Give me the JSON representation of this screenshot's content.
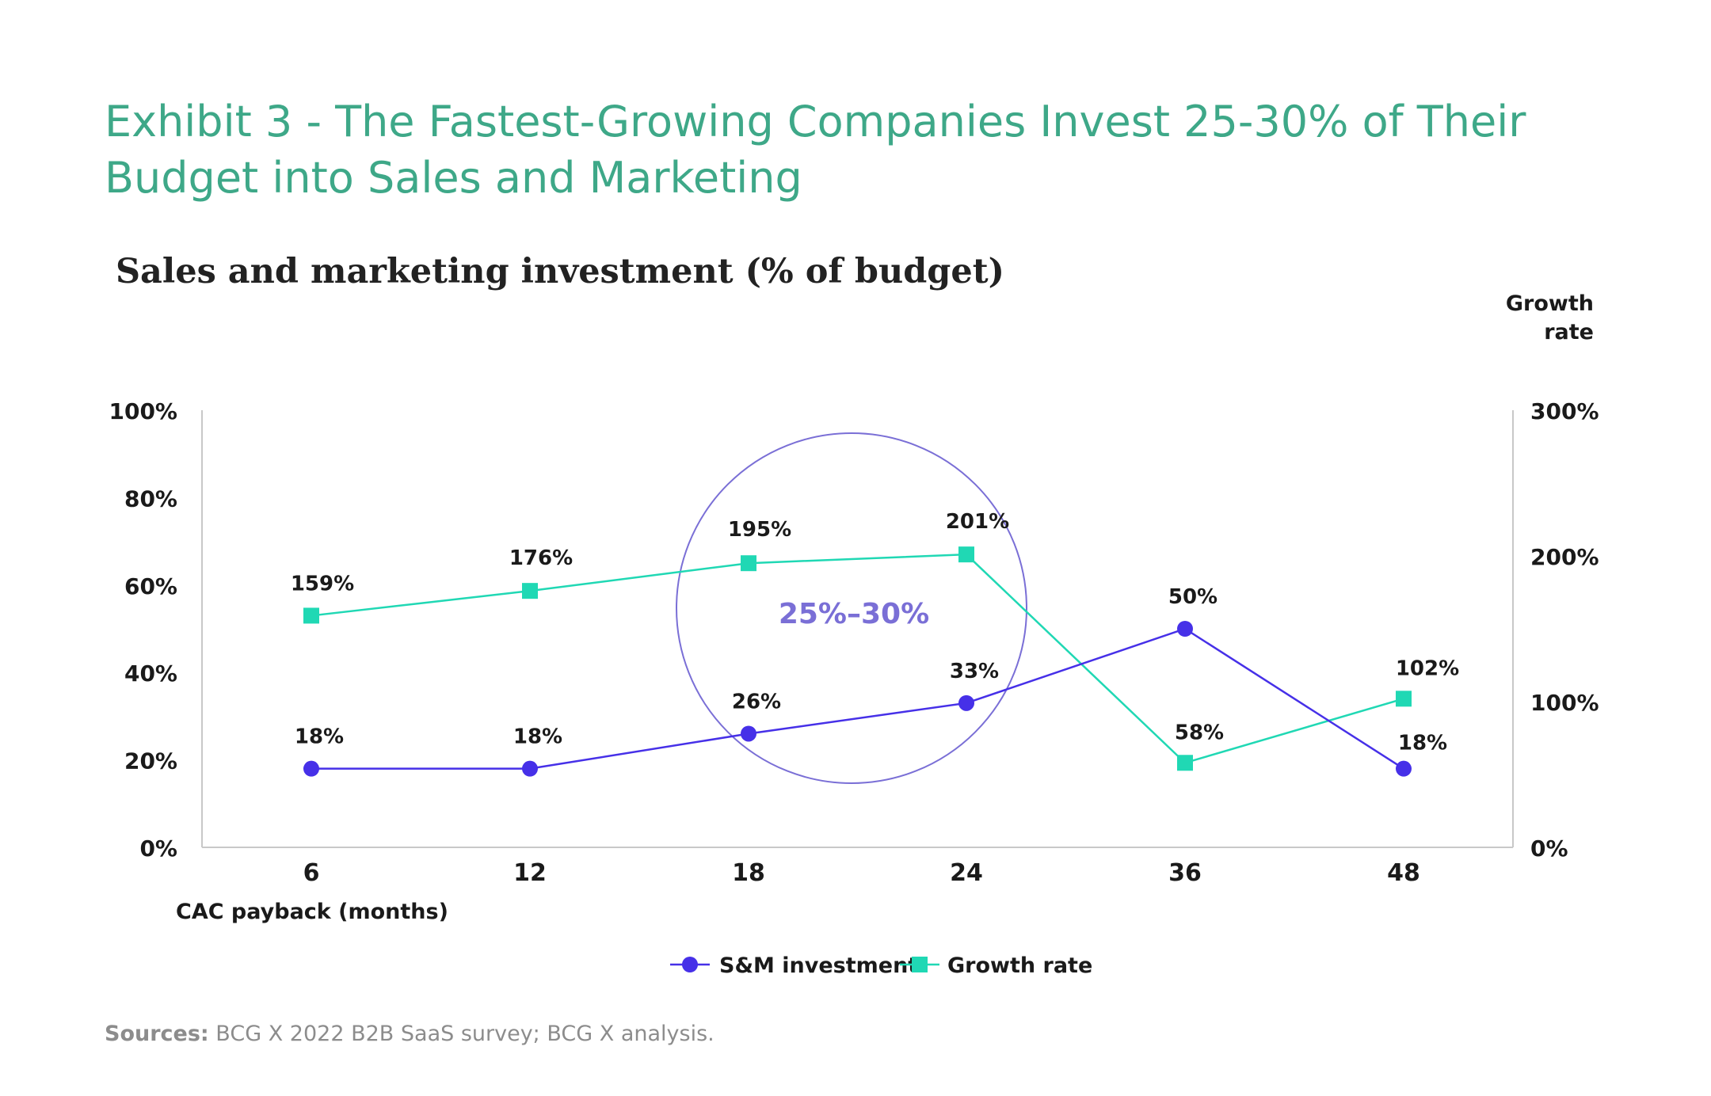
{
  "exhibit_title": "Exhibit 3 - The Fastest-Growing Companies Invest 25-30% of Their Budget into Sales and Marketing",
  "source_label": "Sources:",
  "source_text": " BCG X 2022 B2B SaaS survey; BCG X analysis.",
  "colors": {
    "title": "#3ea888",
    "sm": "#4630e8",
    "growth": "#20d8b4",
    "circle": "#7a6fd6",
    "axis": "#c8c8c8"
  },
  "chart_data": {
    "type": "line",
    "title": "Sales and marketing investment (% of budget)",
    "xlabel": "CAC payback (months)",
    "ylabel_left": "",
    "ylabel_right": "Growth rate",
    "categories": [
      "6",
      "12",
      "18",
      "24",
      "36",
      "48"
    ],
    "ylim_left": [
      0,
      100
    ],
    "ylim_right": [
      0,
      300
    ],
    "yticks_left": [
      "0%",
      "20%",
      "40%",
      "60%",
      "80%",
      "100%"
    ],
    "yticks_right": [
      "0%",
      "100%",
      "200%",
      "300%"
    ],
    "series": [
      {
        "name": "S&M investment",
        "axis": "left",
        "marker": "circle",
        "values": [
          18,
          18,
          26,
          33,
          50,
          18
        ],
        "labels": [
          "18%",
          "18%",
          "26%",
          "33%",
          "50%",
          "18%"
        ]
      },
      {
        "name": "Growth rate",
        "axis": "right",
        "marker": "square",
        "values": [
          159,
          176,
          195,
          201,
          58,
          102
        ],
        "labels": [
          "159%",
          "176%",
          "195%",
          "201%",
          "58%",
          "102%"
        ]
      }
    ],
    "annotation": "25%–30%",
    "legend_position": "bottom-center",
    "grid": false
  }
}
